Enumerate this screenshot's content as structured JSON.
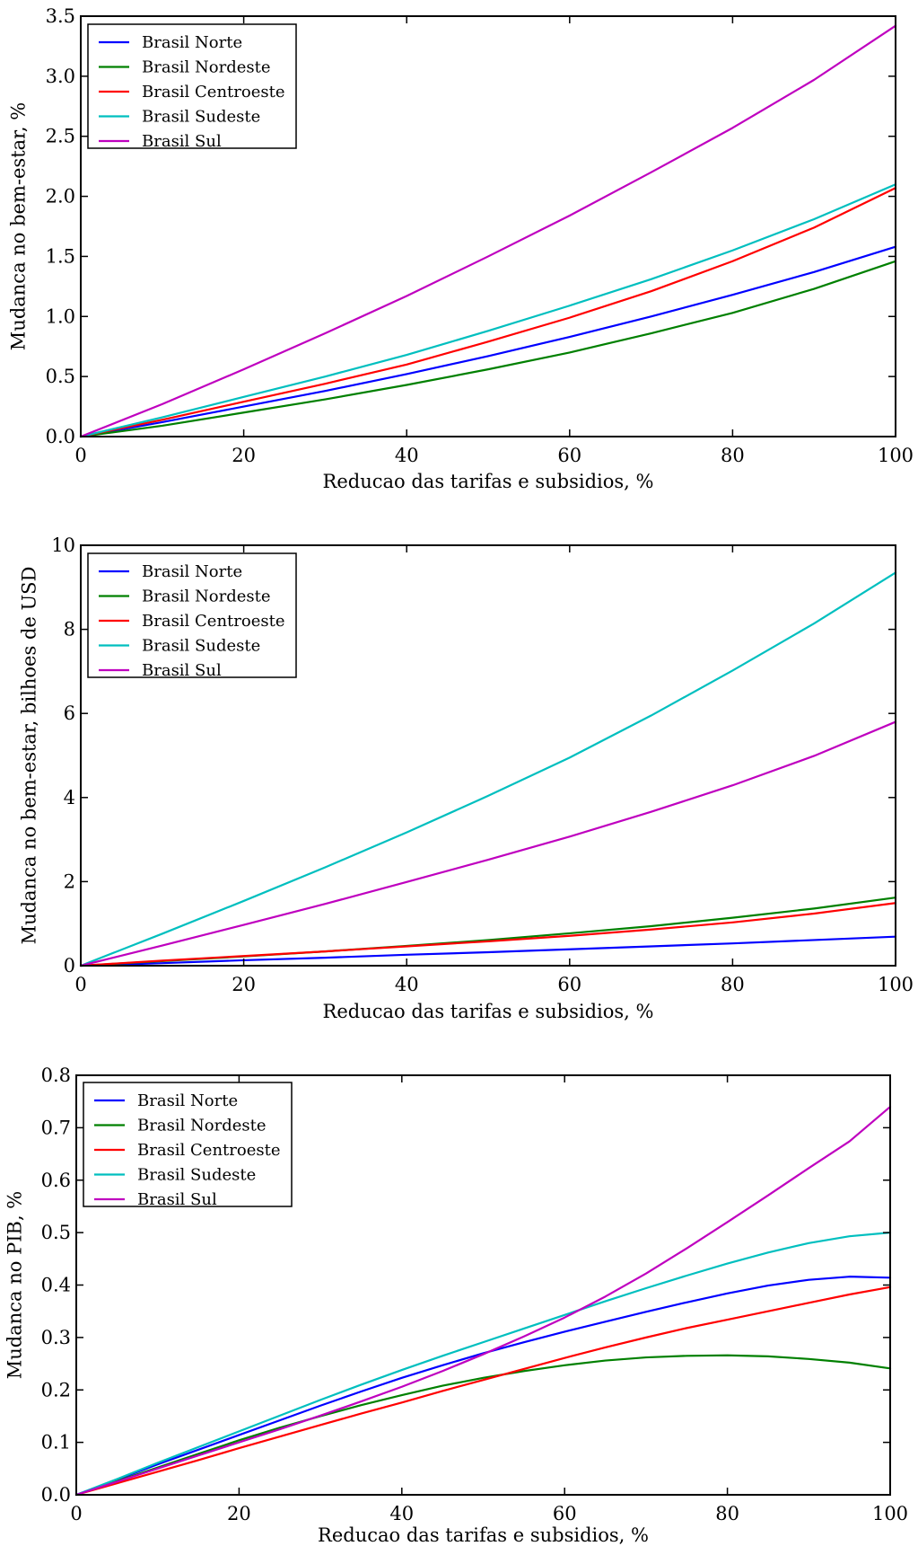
{
  "chart_data": [
    {
      "type": "line",
      "title": "",
      "xlabel": "Reducao das tarifas e subsidios, %",
      "ylabel": "Mudanca no bem-estar, %",
      "xlim": [
        0,
        100
      ],
      "ylim": [
        0,
        3.5
      ],
      "xticks": [
        "0",
        "20",
        "40",
        "60",
        "80",
        "100"
      ],
      "yticks": [
        "0.0",
        "0.5",
        "1.0",
        "1.5",
        "2.0",
        "2.5",
        "3.0",
        "3.5"
      ],
      "grid": false,
      "legend_position": "top-left",
      "x": [
        0,
        10,
        20,
        30,
        40,
        50,
        60,
        70,
        80,
        90,
        100
      ],
      "series": [
        {
          "name": "Brasil Norte",
          "color": "#0000ff",
          "values": [
            0,
            0.12,
            0.25,
            0.38,
            0.52,
            0.67,
            0.83,
            1.0,
            1.18,
            1.37,
            1.58
          ]
        },
        {
          "name": "Brasil Nordeste",
          "color": "#008000",
          "values": [
            0,
            0.09,
            0.2,
            0.31,
            0.43,
            0.56,
            0.7,
            0.86,
            1.03,
            1.23,
            1.46
          ]
        },
        {
          "name": "Brasil Centroeste",
          "color": "#ff0000",
          "values": [
            0,
            0.14,
            0.29,
            0.44,
            0.6,
            0.79,
            0.99,
            1.21,
            1.46,
            1.74,
            2.07
          ]
        },
        {
          "name": "Brasil Sudeste",
          "color": "#00bfbf",
          "values": [
            0,
            0.16,
            0.33,
            0.5,
            0.68,
            0.88,
            1.09,
            1.31,
            1.55,
            1.81,
            2.1
          ]
        },
        {
          "name": "Brasil Sul",
          "color": "#bf00bf",
          "values": [
            0,
            0.27,
            0.56,
            0.86,
            1.17,
            1.5,
            1.84,
            2.2,
            2.57,
            2.97,
            3.42
          ]
        }
      ]
    },
    {
      "type": "line",
      "title": "",
      "xlabel": "Reducao das tarifas e subsidios, %",
      "ylabel": "Mudanca no bem-estar, bilhoes de USD",
      "xlim": [
        0,
        100
      ],
      "ylim": [
        0,
        10
      ],
      "xticks": [
        "0",
        "20",
        "40",
        "60",
        "80",
        "100"
      ],
      "yticks": [
        "0",
        "2",
        "4",
        "6",
        "8",
        "10"
      ],
      "grid": false,
      "legend_position": "top-left",
      "x": [
        0,
        10,
        20,
        30,
        40,
        50,
        60,
        70,
        80,
        90,
        100
      ],
      "series": [
        {
          "name": "Brasil Norte",
          "color": "#0000ff",
          "values": [
            0,
            0.06,
            0.13,
            0.19,
            0.26,
            0.32,
            0.39,
            0.46,
            0.53,
            0.61,
            0.69
          ]
        },
        {
          "name": "Brasil Nordeste",
          "color": "#008000",
          "values": [
            0,
            0.11,
            0.22,
            0.34,
            0.47,
            0.61,
            0.77,
            0.94,
            1.14,
            1.36,
            1.62
          ]
        },
        {
          "name": "Brasil Centroeste",
          "color": "#ff0000",
          "values": [
            0,
            0.12,
            0.23,
            0.34,
            0.46,
            0.58,
            0.71,
            0.86,
            1.03,
            1.24,
            1.49
          ]
        },
        {
          "name": "Brasil Sudeste",
          "color": "#00bfbf",
          "values": [
            0,
            0.76,
            1.54,
            2.34,
            3.17,
            4.04,
            4.95,
            5.95,
            7.02,
            8.14,
            9.35
          ]
        },
        {
          "name": "Brasil Sul",
          "color": "#bf00bf",
          "values": [
            0,
            0.48,
            0.97,
            1.47,
            1.99,
            2.52,
            3.07,
            3.66,
            4.29,
            4.99,
            5.8
          ]
        }
      ]
    },
    {
      "type": "line",
      "title": "",
      "xlabel": "Reducao das tarifas e subsidios, %",
      "ylabel": "Mudanca no PIB, %",
      "xlim": [
        0,
        100
      ],
      "ylim": [
        0,
        0.8
      ],
      "xticks": [
        "0",
        "20",
        "40",
        "60",
        "80",
        "100"
      ],
      "yticks": [
        "0.0",
        "0.1",
        "0.2",
        "0.3",
        "0.4",
        "0.5",
        "0.6",
        "0.7",
        "0.8"
      ],
      "grid": false,
      "legend_position": "top-left",
      "x": [
        0,
        5,
        10,
        15,
        20,
        25,
        30,
        35,
        40,
        45,
        50,
        55,
        60,
        65,
        70,
        75,
        80,
        85,
        90,
        95,
        100
      ],
      "series": [
        {
          "name": "Brasil Norte",
          "color": "#0000ff",
          "values": [
            0,
            0.029,
            0.058,
            0.086,
            0.114,
            0.142,
            0.17,
            0.197,
            0.223,
            0.247,
            0.27,
            0.291,
            0.311,
            0.33,
            0.349,
            0.367,
            0.384,
            0.399,
            0.41,
            0.416,
            0.414
          ]
        },
        {
          "name": "Brasil Nordeste",
          "color": "#008000",
          "values": [
            0,
            0.026,
            0.052,
            0.078,
            0.104,
            0.128,
            0.15,
            0.171,
            0.19,
            0.208,
            0.223,
            0.236,
            0.247,
            0.256,
            0.262,
            0.265,
            0.266,
            0.264,
            0.259,
            0.252,
            0.241
          ]
        },
        {
          "name": "Brasil Centroeste",
          "color": "#ff0000",
          "values": [
            0,
            0.022,
            0.044,
            0.066,
            0.089,
            0.111,
            0.133,
            0.155,
            0.176,
            0.198,
            0.219,
            0.24,
            0.261,
            0.281,
            0.3,
            0.318,
            0.334,
            0.35,
            0.366,
            0.382,
            0.396
          ]
        },
        {
          "name": "Brasil Sudeste",
          "color": "#00bfbf",
          "values": [
            0,
            0.03,
            0.061,
            0.091,
            0.121,
            0.151,
            0.181,
            0.21,
            0.238,
            0.265,
            0.291,
            0.317,
            0.343,
            0.369,
            0.394,
            0.418,
            0.441,
            0.462,
            0.48,
            0.493,
            0.5
          ]
        },
        {
          "name": "Brasil Sul",
          "color": "#bf00bf",
          "values": [
            0,
            0.025,
            0.05,
            0.075,
            0.1,
            0.125,
            0.151,
            0.178,
            0.206,
            0.236,
            0.268,
            0.302,
            0.338,
            0.378,
            0.422,
            0.47,
            0.52,
            0.571,
            0.623,
            0.674,
            0.74
          ]
        }
      ]
    }
  ]
}
